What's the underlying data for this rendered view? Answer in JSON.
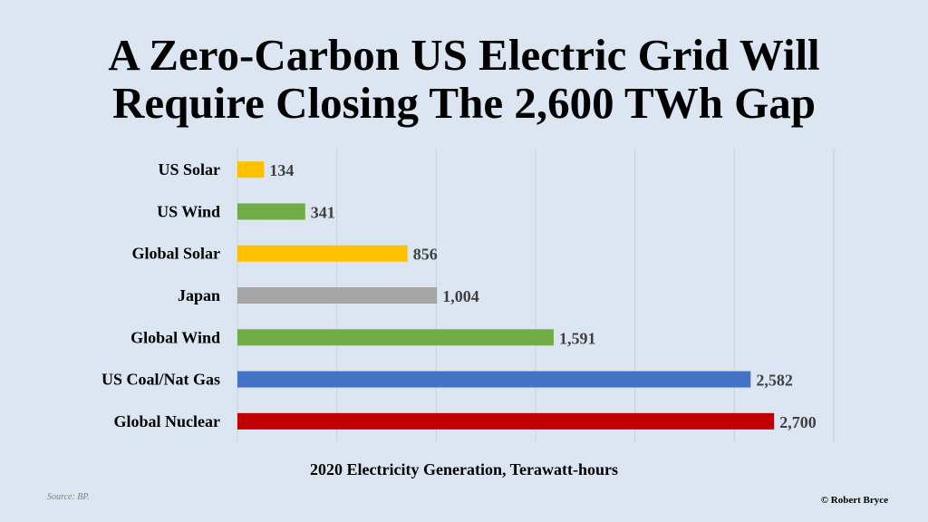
{
  "chart_data": {
    "type": "bar",
    "orientation": "horizontal",
    "title": [
      "A Zero-Carbon US Electric Grid Will",
      "Require Closing The 2,600 TWh Gap"
    ],
    "xlabel": "2020 Electricity Generation, Terawatt-hours",
    "ylabel": "",
    "xlim": [
      0,
      3000
    ],
    "grid": true,
    "legend": "none",
    "categories": [
      "US Solar",
      "US Wind",
      "Global Solar",
      "Japan",
      "Global Wind",
      "US Coal/Nat Gas",
      "Global Nuclear"
    ],
    "values": [
      134,
      341,
      856,
      1004,
      1591,
      2582,
      2700
    ],
    "value_labels": [
      "134",
      "341",
      "856",
      "1,004",
      "1,591",
      "2,582",
      "2,700"
    ],
    "colors": [
      "#ffc000",
      "#70ad47",
      "#ffc000",
      "#a5a5a5",
      "#70ad47",
      "#4472c4",
      "#c00000"
    ]
  },
  "footer": {
    "source": "Source: BP.",
    "copyright": "© Robert Bryce"
  }
}
